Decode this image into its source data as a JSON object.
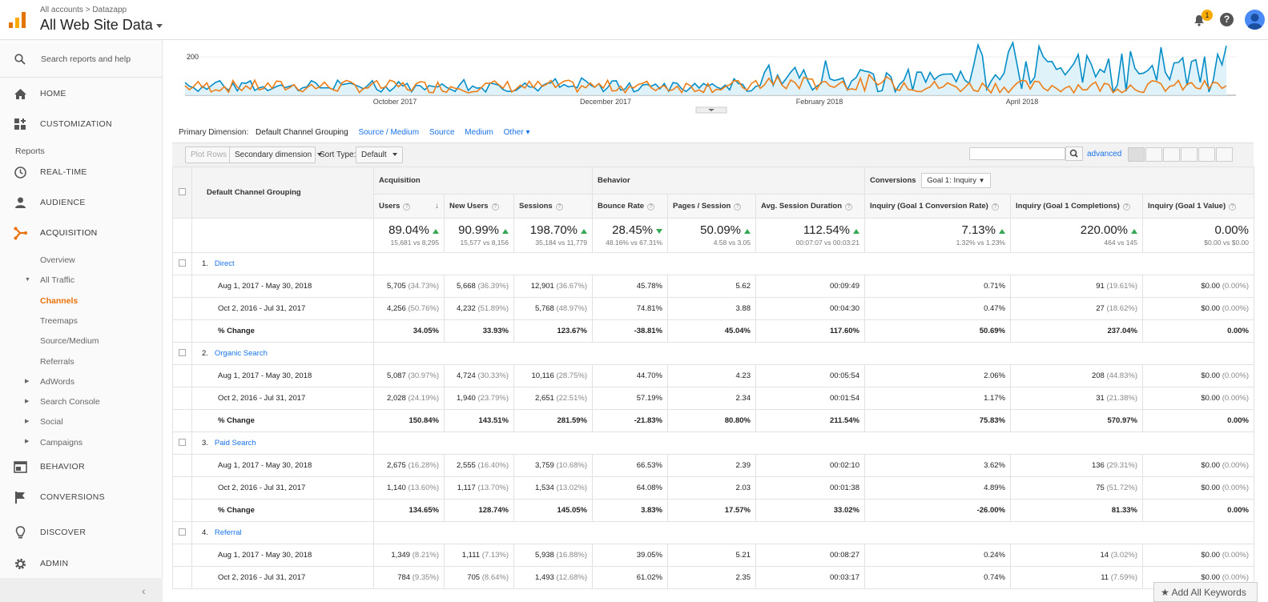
{
  "header": {
    "breadcrumb": "All accounts > Datazapp",
    "account_title": "All Web Site Data",
    "notification_count": "1"
  },
  "sidebar": {
    "search_placeholder": "Search reports and help",
    "home": "HOME",
    "customization": "CUSTOMIZATION",
    "reports_label": "Reports",
    "realtime": "REAL-TIME",
    "audience": "AUDIENCE",
    "acquisition": "ACQUISITION",
    "acq_sub": {
      "overview": "Overview",
      "all_traffic": "All Traffic",
      "channels": "Channels",
      "treemaps": "Treemaps",
      "source_medium": "Source/Medium",
      "referrals": "Referrals",
      "adwords": "AdWords",
      "search_console": "Search Console",
      "social": "Social",
      "campaigns": "Campaigns"
    },
    "behavior": "BEHAVIOR",
    "conversions": "CONVERSIONS",
    "discover": "DISCOVER",
    "admin": "ADMIN"
  },
  "chart_data": {
    "type": "line",
    "y_tick": "200",
    "x_labels": [
      "October 2017",
      "December 2017",
      "February 2018",
      "April 2018"
    ],
    "series": [
      {
        "color": "#058dc7"
      },
      {
        "color": "#ed7e17"
      }
    ]
  },
  "primary_dimension": {
    "label": "Primary Dimension:",
    "current": "Default Channel Grouping",
    "options": [
      "Source / Medium",
      "Source",
      "Medium",
      "Other"
    ]
  },
  "toolbar": {
    "plot_rows": "Plot Rows",
    "secondary": "Secondary dimension",
    "sort_label": "Sort Type:",
    "sort_value": "Default",
    "advanced": "advanced"
  },
  "table": {
    "dim_header": "Default Channel Grouping",
    "groups": {
      "acquisition": "Acquisition",
      "behavior": "Behavior",
      "conversions": "Conversions",
      "goal": "Goal 1: Inquiry"
    },
    "columns": [
      "Users",
      "New Users",
      "Sessions",
      "Bounce Rate",
      "Pages / Session",
      "Avg. Session Duration",
      "Inquiry (Goal 1 Conversion Rate)",
      "Inquiry (Goal 1 Completions)",
      "Inquiry (Goal 1 Value)"
    ],
    "totals": [
      {
        "big": "89.04%",
        "sm": "15,681 vs 8,295",
        "dir": "up"
      },
      {
        "big": "90.99%",
        "sm": "15,577 vs 8,156",
        "dir": "up"
      },
      {
        "big": "198.70%",
        "sm": "35,184 vs 11,779",
        "dir": "up"
      },
      {
        "big": "28.45%",
        "sm": "48.16% vs 67.31%",
        "dir": "dn"
      },
      {
        "big": "50.09%",
        "sm": "4.58 vs 3.05",
        "dir": "up"
      },
      {
        "big": "112.54%",
        "sm": "00:07:07 vs 00:03:21",
        "dir": "up"
      },
      {
        "big": "7.13%",
        "sm": "1.32% vs 1.23%",
        "dir": "up"
      },
      {
        "big": "220.00%",
        "sm": "464 vs 145",
        "dir": "up"
      },
      {
        "big": "0.00%",
        "sm": "$0.00 vs $0.00",
        "dir": ""
      }
    ],
    "channels": [
      {
        "num": "1.",
        "name": "Direct",
        "rows": [
          {
            "label": "Aug 1, 2017 - May 30, 2018",
            "cells": [
              [
                "5,705",
                "(34.73%)"
              ],
              [
                "5,668",
                "(36.39%)"
              ],
              [
                "12,901",
                "(36.67%)"
              ],
              [
                "45.78%",
                ""
              ],
              [
                "5.62",
                ""
              ],
              [
                "00:09:49",
                ""
              ],
              [
                "0.71%",
                ""
              ],
              [
                "91",
                "(19.61%)"
              ],
              [
                "$0.00",
                "(0.00%)"
              ]
            ]
          },
          {
            "label": "Oct 2, 2016 - Jul 31, 2017",
            "cells": [
              [
                "4,256",
                "(50.76%)"
              ],
              [
                "4,232",
                "(51.89%)"
              ],
              [
                "5,768",
                "(48.97%)"
              ],
              [
                "74.81%",
                ""
              ],
              [
                "3.88",
                ""
              ],
              [
                "00:04:30",
                ""
              ],
              [
                "0.47%",
                ""
              ],
              [
                "27",
                "(18.62%)"
              ],
              [
                "$0.00",
                "(0.00%)"
              ]
            ]
          },
          {
            "label": "% Change",
            "change": true,
            "cells": [
              [
                "34.05%",
                ""
              ],
              [
                "33.93%",
                ""
              ],
              [
                "123.67%",
                ""
              ],
              [
                "-38.81%",
                ""
              ],
              [
                "45.04%",
                ""
              ],
              [
                "117.60%",
                ""
              ],
              [
                "50.69%",
                ""
              ],
              [
                "237.04%",
                ""
              ],
              [
                "0.00%",
                ""
              ]
            ]
          }
        ]
      },
      {
        "num": "2.",
        "name": "Organic Search",
        "rows": [
          {
            "label": "Aug 1, 2017 - May 30, 2018",
            "cells": [
              [
                "5,087",
                "(30.97%)"
              ],
              [
                "4,724",
                "(30.33%)"
              ],
              [
                "10,116",
                "(28.75%)"
              ],
              [
                "44.70%",
                ""
              ],
              [
                "4.23",
                ""
              ],
              [
                "00:05:54",
                ""
              ],
              [
                "2.06%",
                ""
              ],
              [
                "208",
                "(44.83%)"
              ],
              [
                "$0.00",
                "(0.00%)"
              ]
            ]
          },
          {
            "label": "Oct 2, 2016 - Jul 31, 2017",
            "cells": [
              [
                "2,028",
                "(24.19%)"
              ],
              [
                "1,940",
                "(23.79%)"
              ],
              [
                "2,651",
                "(22.51%)"
              ],
              [
                "57.19%",
                ""
              ],
              [
                "2.34",
                ""
              ],
              [
                "00:01:54",
                ""
              ],
              [
                "1.17%",
                ""
              ],
              [
                "31",
                "(21.38%)"
              ],
              [
                "$0.00",
                "(0.00%)"
              ]
            ]
          },
          {
            "label": "% Change",
            "change": true,
            "cells": [
              [
                "150.84%",
                ""
              ],
              [
                "143.51%",
                ""
              ],
              [
                "281.59%",
                ""
              ],
              [
                "-21.83%",
                ""
              ],
              [
                "80.80%",
                ""
              ],
              [
                "211.54%",
                ""
              ],
              [
                "75.83%",
                ""
              ],
              [
                "570.97%",
                ""
              ],
              [
                "0.00%",
                ""
              ]
            ]
          }
        ]
      },
      {
        "num": "3.",
        "name": "Paid Search",
        "rows": [
          {
            "label": "Aug 1, 2017 - May 30, 2018",
            "cells": [
              [
                "2,675",
                "(16.28%)"
              ],
              [
                "2,555",
                "(16.40%)"
              ],
              [
                "3,759",
                "(10.68%)"
              ],
              [
                "66.53%",
                ""
              ],
              [
                "2.39",
                ""
              ],
              [
                "00:02:10",
                ""
              ],
              [
                "3.62%",
                ""
              ],
              [
                "136",
                "(29.31%)"
              ],
              [
                "$0.00",
                "(0.00%)"
              ]
            ]
          },
          {
            "label": "Oct 2, 2016 - Jul 31, 2017",
            "cells": [
              [
                "1,140",
                "(13.60%)"
              ],
              [
                "1,117",
                "(13.70%)"
              ],
              [
                "1,534",
                "(13.02%)"
              ],
              [
                "64.08%",
                ""
              ],
              [
                "2.03",
                ""
              ],
              [
                "00:01:38",
                ""
              ],
              [
                "4.89%",
                ""
              ],
              [
                "75",
                "(51.72%)"
              ],
              [
                "$0.00",
                "(0.00%)"
              ]
            ]
          },
          {
            "label": "% Change",
            "change": true,
            "cells": [
              [
                "134.65%",
                ""
              ],
              [
                "128.74%",
                ""
              ],
              [
                "145.05%",
                ""
              ],
              [
                "3.83%",
                ""
              ],
              [
                "17.57%",
                ""
              ],
              [
                "33.02%",
                ""
              ],
              [
                "-26.00%",
                ""
              ],
              [
                "81.33%",
                ""
              ],
              [
                "0.00%",
                ""
              ]
            ]
          }
        ]
      },
      {
        "num": "4.",
        "name": "Referral",
        "rows": [
          {
            "label": "Aug 1, 2017 - May 30, 2018",
            "cells": [
              [
                "1,349",
                "(8.21%)"
              ],
              [
                "1,111",
                "(7.13%)"
              ],
              [
                "5,938",
                "(16.88%)"
              ],
              [
                "39.05%",
                ""
              ],
              [
                "5.21",
                ""
              ],
              [
                "00:08:27",
                ""
              ],
              [
                "0.24%",
                ""
              ],
              [
                "14",
                "(3.02%)"
              ],
              [
                "$0.00",
                "(0.00%)"
              ]
            ]
          },
          {
            "label": "Oct 2, 2016 - Jul 31, 2017",
            "cells": [
              [
                "784",
                "(9.35%)"
              ],
              [
                "705",
                "(8.64%)"
              ],
              [
                "1,493",
                "(12.68%)"
              ],
              [
                "61.02%",
                ""
              ],
              [
                "2.35",
                ""
              ],
              [
                "00:03:17",
                ""
              ],
              [
                "0.74%",
                ""
              ],
              [
                "11",
                "(7.59%)"
              ],
              [
                "$0.00",
                "(0.00%)"
              ]
            ]
          }
        ]
      }
    ]
  },
  "add_keywords": "Add All Keywords"
}
